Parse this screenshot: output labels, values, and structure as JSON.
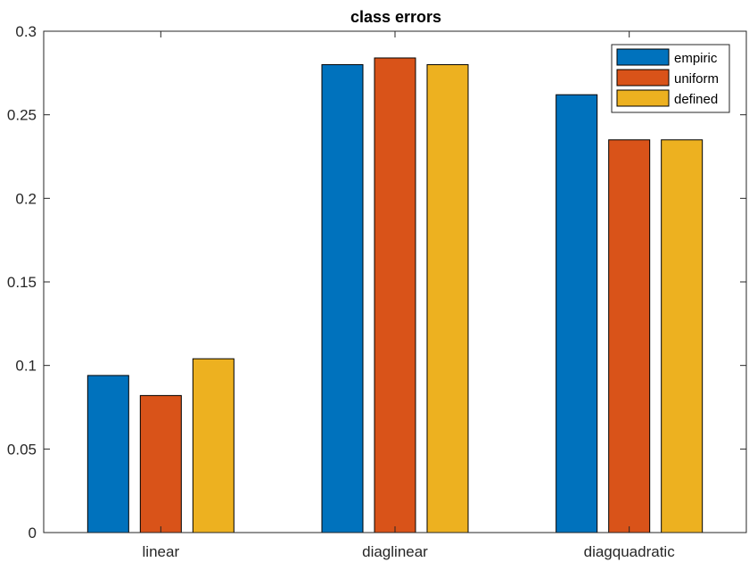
{
  "chart_data": {
    "type": "bar",
    "title": "class errors",
    "xlabel": "",
    "ylabel": "",
    "categories": [
      "linear",
      "diaglinear",
      "diagquadratic"
    ],
    "series": [
      {
        "name": "empiric",
        "color": "#0072BD",
        "values": [
          0.094,
          0.28,
          0.262
        ]
      },
      {
        "name": "uniform",
        "color": "#D95319",
        "values": [
          0.082,
          0.284,
          0.235
        ]
      },
      {
        "name": "defined",
        "color": "#EDB120",
        "values": [
          0.104,
          0.28,
          0.235
        ]
      }
    ],
    "ylim": [
      0,
      0.3
    ],
    "yticks": [
      0,
      0.05,
      0.1,
      0.15,
      0.2,
      0.25,
      0.3
    ],
    "ytick_labels": [
      "0",
      "0.05",
      "0.1",
      "0.15",
      "0.2",
      "0.25",
      "0.3"
    ],
    "grid": false,
    "legend_position": "top-right"
  }
}
